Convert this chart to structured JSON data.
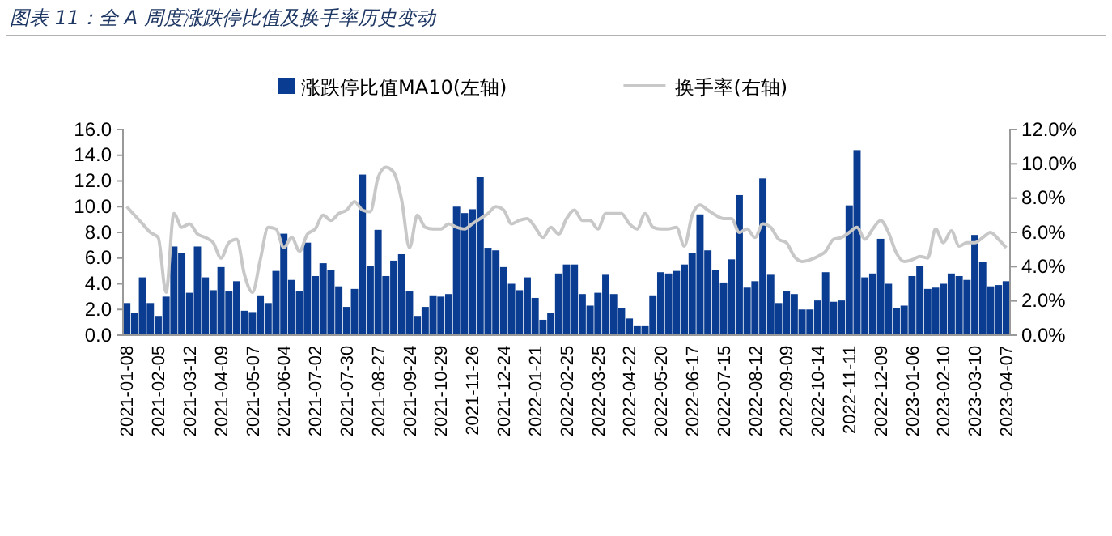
{
  "chart_data": {
    "type": "bar",
    "title": "图表 11：全 A 周度涨跌停比值及换手率历史变动",
    "categories": [
      "2021-01-08",
      null,
      null,
      null,
      "2021-02-05",
      null,
      null,
      null,
      "2021-03-12",
      null,
      null,
      null,
      "2021-04-09",
      null,
      null,
      null,
      "2021-05-07",
      null,
      null,
      null,
      "2021-06-04",
      null,
      null,
      null,
      "2021-07-02",
      null,
      null,
      null,
      "2021-07-30",
      null,
      null,
      null,
      "2021-08-27",
      null,
      null,
      null,
      "2021-09-24",
      null,
      null,
      null,
      "2021-10-29",
      null,
      null,
      null,
      "2021-11-26",
      null,
      null,
      null,
      "2021-12-24",
      null,
      null,
      null,
      "2022-01-21",
      null,
      null,
      null,
      "2022-02-25",
      null,
      null,
      null,
      "2022-03-25",
      null,
      null,
      null,
      "2022-04-22",
      null,
      null,
      null,
      "2022-05-20",
      null,
      null,
      null,
      "2022-06-17",
      null,
      null,
      null,
      "2022-07-15",
      null,
      null,
      null,
      "2022-08-12",
      null,
      null,
      null,
      "2022-09-09",
      null,
      null,
      null,
      "2022-10-14",
      null,
      null,
      null,
      "2022-11-11",
      null,
      null,
      null,
      "2022-12-09",
      null,
      null,
      null,
      "2023-01-06",
      null,
      null,
      null,
      "2023-02-10",
      null,
      null,
      null,
      "2023-03-10",
      null,
      null,
      null,
      "2023-04-07"
    ],
    "series": [
      {
        "name": "涨跌停比值MA10(左轴)",
        "color": "#0a3d91",
        "values": [
          2.5,
          1.7,
          4.5,
          2.5,
          1.5,
          3.0,
          6.9,
          6.4,
          3.3,
          6.9,
          4.5,
          3.5,
          5.3,
          3.4,
          4.2,
          1.9,
          1.8,
          3.1,
          2.5,
          5.0,
          7.9,
          4.3,
          3.4,
          7.2,
          4.6,
          5.6,
          5.1,
          3.8,
          2.2,
          3.6,
          12.5,
          5.4,
          8.2,
          4.6,
          5.8,
          6.3,
          3.4,
          1.5,
          2.2,
          3.1,
          3.0,
          3.2,
          10.0,
          9.5,
          9.8,
          12.3,
          6.8,
          6.6,
          5.3,
          4.0,
          3.5,
          4.5,
          2.9,
          1.2,
          1.7,
          4.8,
          5.5,
          5.5,
          3.2,
          2.3,
          3.3,
          4.7,
          3.2,
          2.1,
          1.3,
          0.7,
          0.7,
          3.1,
          4.9,
          4.8,
          5.0,
          5.5,
          6.4,
          9.4,
          6.6,
          5.1,
          4.1,
          5.9,
          10.9,
          3.7,
          4.2,
          12.2,
          4.7,
          2.5,
          3.4,
          3.2,
          2.0,
          2.0,
          2.7,
          4.9,
          2.6,
          2.7,
          10.1,
          14.4,
          4.5,
          4.8,
          7.5,
          4.0,
          2.1,
          2.3,
          4.6,
          5.4,
          3.6,
          3.7,
          4.0,
          4.8,
          4.6,
          4.3,
          7.8,
          5.7,
          3.8,
          3.9,
          4.2
        ]
      },
      {
        "name": "换手率(右轴)",
        "type": "line",
        "axis": "y2",
        "color": "#c8c8c8",
        "values": [
          7.5,
          7.0,
          6.5,
          6.0,
          5.7,
          2.5,
          7.1,
          6.3,
          6.5,
          5.9,
          5.7,
          5.4,
          4.5,
          5.4,
          5.6,
          3.5,
          2.5,
          4.4,
          6.3,
          6.2,
          5.1,
          5.7,
          4.9,
          5.9,
          6.2,
          7.0,
          6.7,
          7.1,
          7.3,
          7.8,
          7.3,
          7.2,
          9.2,
          9.8,
          9.5,
          7.9,
          5.1,
          7.0,
          6.3,
          6.2,
          6.2,
          6.5,
          6.3,
          6.2,
          6.5,
          6.8,
          7.1,
          7.5,
          7.3,
          6.5,
          6.7,
          6.8,
          6.3,
          5.7,
          6.3,
          5.9,
          6.8,
          7.3,
          6.7,
          6.7,
          6.2,
          7.1,
          7.1,
          7.1,
          6.5,
          6.2,
          7.1,
          6.3,
          6.2,
          6.2,
          6.3,
          5.2,
          7.0,
          7.6,
          7.3,
          7.0,
          6.8,
          6.8,
          6.0,
          6.2,
          5.7,
          6.5,
          6.3,
          5.6,
          5.4,
          4.6,
          4.3,
          4.4,
          4.6,
          4.9,
          5.6,
          5.7,
          6.0,
          6.3,
          5.6,
          6.2,
          6.7,
          6.0,
          4.8,
          4.3,
          4.4,
          4.6,
          4.5,
          6.2,
          5.4,
          6.1,
          5.2,
          5.4,
          5.4,
          5.7,
          6.0,
          5.6,
          5.1
        ]
      }
    ],
    "ylim": [
      0,
      16
    ],
    "yticks": [
      {
        "value": 0,
        "label": "0.0"
      },
      {
        "value": 2,
        "label": "2.0"
      },
      {
        "value": 4,
        "label": "4.0"
      },
      {
        "value": 6,
        "label": "6.0"
      },
      {
        "value": 8,
        "label": "8.0"
      },
      {
        "value": 10,
        "label": "10.0"
      },
      {
        "value": 12,
        "label": "12.0"
      },
      {
        "value": 14,
        "label": "14.0"
      },
      {
        "value": 16,
        "label": "16.0"
      }
    ],
    "y2lim": [
      0,
      12
    ],
    "y2ticks": [
      {
        "value": 0,
        "label": "0.0%"
      },
      {
        "value": 2,
        "label": "2.0%"
      },
      {
        "value": 4,
        "label": "4.0%"
      },
      {
        "value": 6,
        "label": "6.0%"
      },
      {
        "value": 8,
        "label": "8.0%"
      },
      {
        "value": 10,
        "label": "10.0%"
      },
      {
        "value": 12,
        "label": "12.0%"
      }
    ],
    "legend": "top"
  }
}
